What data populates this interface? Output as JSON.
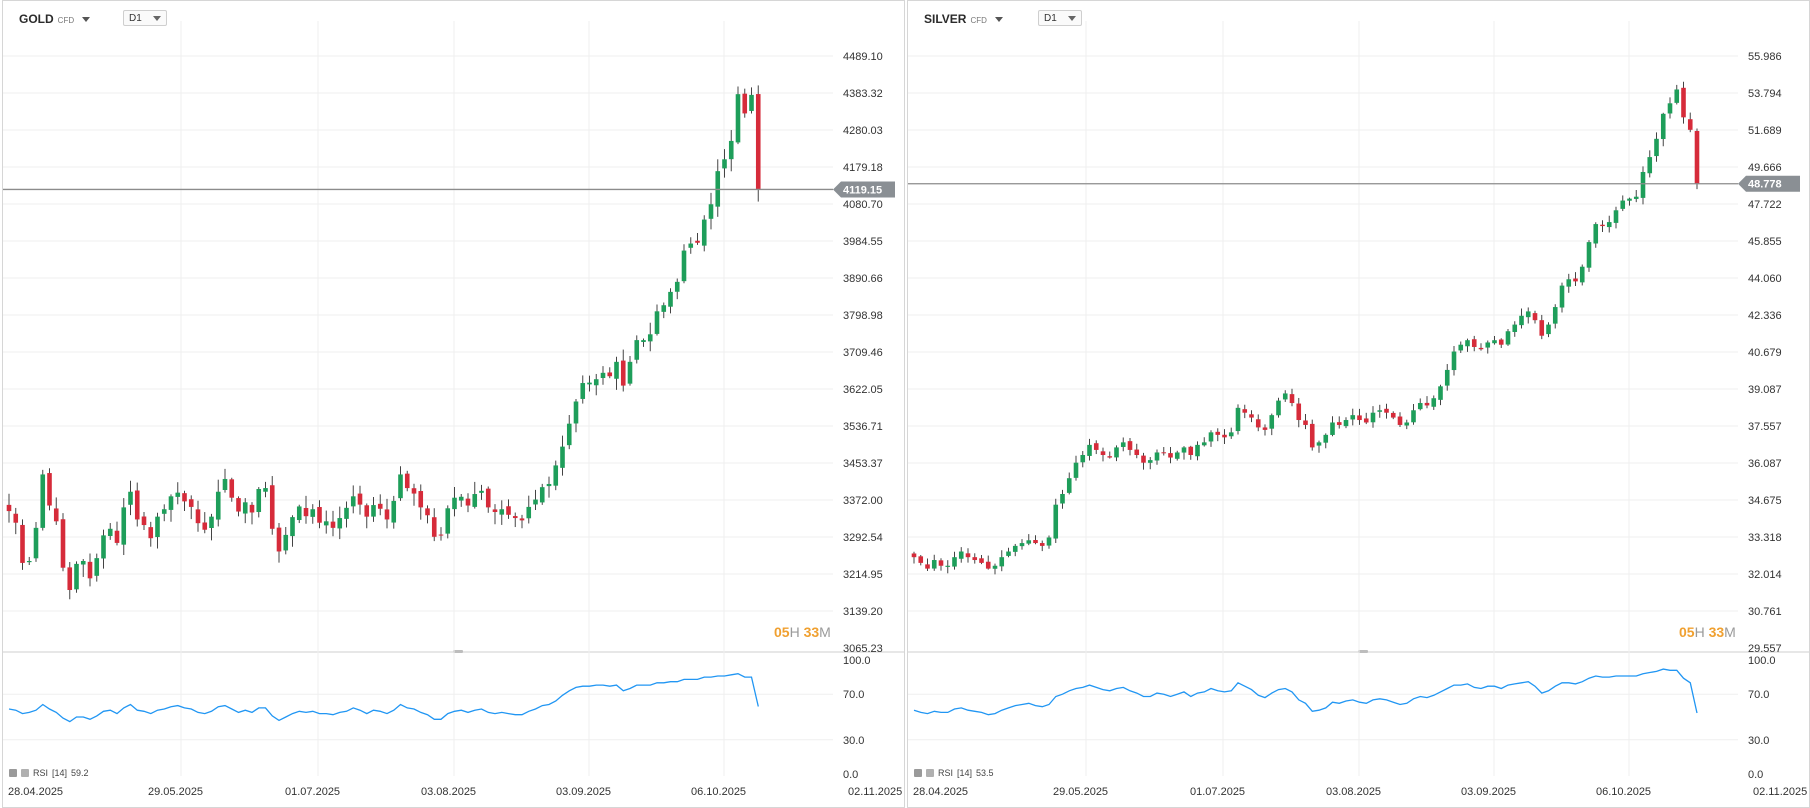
{
  "charts": [
    {
      "symbol": "GOLD",
      "badge": "CFD",
      "timeframe": "D1",
      "current_price": "4119.15",
      "price_axis": [
        "4489.10",
        "4383.32",
        "4280.03",
        "4179.18",
        "4080.70",
        "3984.55",
        "3890.66",
        "3798.98",
        "3709.46",
        "3622.05",
        "3536.71",
        "3453.37",
        "3372.00",
        "3292.54",
        "3214.95",
        "3139.20",
        "3065.23"
      ],
      "countdown": {
        "hours": "05",
        "h_unit": "H",
        "minutes": "33",
        "m_unit": "M"
      },
      "rsi": {
        "label": "RSI",
        "period": "[14]",
        "value": "59.2",
        "axis": [
          "100.0",
          "70.0",
          "30.0",
          "0.0"
        ]
      },
      "dates": [
        "28.04.2025",
        "29.05.2025",
        "01.07.2025",
        "03.08.2025",
        "03.09.2025",
        "06.10.2025",
        "02.11.2025"
      ]
    },
    {
      "symbol": "SILVER",
      "badge": "CFD",
      "timeframe": "D1",
      "current_price": "48.778",
      "price_axis": [
        "55.986",
        "53.794",
        "51.689",
        "49.666",
        "47.722",
        "45.855",
        "44.060",
        "42.336",
        "40.679",
        "39.087",
        "37.557",
        "36.087",
        "34.675",
        "33.318",
        "32.014",
        "30.761",
        "29.557"
      ],
      "countdown": {
        "hours": "05",
        "h_unit": "H",
        "minutes": "33",
        "m_unit": "M"
      },
      "rsi": {
        "label": "RSI",
        "period": "[14]",
        "value": "53.5",
        "axis": [
          "100.0",
          "70.0",
          "30.0",
          "0.0"
        ]
      },
      "dates": [
        "28.04.2025",
        "29.05.2025",
        "01.07.2025",
        "03.08.2025",
        "03.09.2025",
        "06.10.2025",
        "02.11.2025"
      ]
    }
  ],
  "colors": {
    "up": "#1e9e5a",
    "down": "#d62b3a",
    "rsi": "#2196f3",
    "price_line": "#8c8c8c",
    "grid": "#efefef"
  },
  "chart_data": [
    {
      "type": "candlestick",
      "title": "GOLD",
      "log_scale": true,
      "ylim": [
        3065.23,
        4489.1
      ],
      "series": [
        {
          "name": "GOLD",
          "values": [
            3348,
            3323,
            3238,
            3242,
            3312,
            3428,
            3360,
            3326,
            3228,
            3182,
            3236,
            3242,
            3206,
            3248,
            3296,
            3310,
            3280,
            3356,
            3390,
            3330,
            3318,
            3290,
            3336,
            3352,
            3380,
            3388,
            3369,
            3357,
            3322,
            3308,
            3336,
            3390,
            3418,
            3377,
            3347,
            3367,
            3345,
            3396,
            3398,
            3310,
            3262,
            3297,
            3335,
            3358,
            3337,
            3352,
            3323,
            3326,
            3312,
            3333,
            3355,
            3380,
            3362,
            3336,
            3361,
            3353,
            3330,
            3370,
            3428,
            3398,
            3386,
            3356,
            3339,
            3293,
            3296,
            3354,
            3377,
            3379,
            3360,
            3385,
            3392,
            3356,
            3346,
            3352,
            3340,
            3333,
            3328,
            3357,
            3373,
            3400,
            3407,
            3448,
            3490,
            3542,
            3593,
            3636,
            3637,
            3645,
            3660,
            3652,
            3686,
            3630,
            3686,
            3738,
            3738,
            3752,
            3808,
            3823,
            3856,
            3881,
            3960,
            3978,
            3980,
            4040,
            4080,
            4168,
            4200,
            4250,
            4380,
            4326,
            4378,
            4119
          ]
        }
      ],
      "rsi": [
        57,
        56,
        53,
        54,
        56,
        61,
        57,
        54,
        49,
        46,
        50,
        50,
        48,
        51,
        55,
        56,
        53,
        58,
        61,
        56,
        55,
        53,
        56,
        57,
        59,
        60,
        58,
        57,
        54,
        53,
        55,
        59,
        60,
        57,
        54,
        56,
        54,
        58,
        58,
        51,
        47,
        50,
        53,
        55,
        54,
        55,
        53,
        53,
        52,
        54,
        55,
        58,
        56,
        53,
        56,
        55,
        53,
        56,
        61,
        58,
        57,
        54,
        52,
        48,
        48,
        53,
        55,
        56,
        54,
        56,
        57,
        54,
        53,
        54,
        53,
        52,
        52,
        55,
        57,
        60,
        61,
        64,
        69,
        73,
        76,
        77,
        77,
        78,
        78,
        77,
        78,
        73,
        75,
        78,
        78,
        78,
        80,
        80,
        81,
        81,
        83,
        83,
        83,
        85,
        85,
        86,
        86,
        87,
        88,
        85,
        85,
        59.2
      ]
    },
    {
      "type": "candlestick",
      "title": "SILVER",
      "log_scale": true,
      "ylim": [
        29.557,
        55.986
      ],
      "series": [
        {
          "name": "SILVER",
          "values": [
            32.6,
            32.4,
            32.2,
            32.5,
            32.3,
            32.3,
            32.6,
            32.8,
            32.6,
            32.5,
            32.4,
            32.2,
            32.3,
            32.6,
            32.8,
            33.0,
            33.1,
            33.2,
            33.1,
            33.0,
            33.3,
            34.5,
            34.9,
            35.5,
            36.1,
            36.4,
            36.8,
            36.6,
            36.4,
            36.3,
            36.7,
            36.9,
            36.6,
            36.4,
            36.1,
            36.2,
            36.5,
            36.5,
            36.3,
            36.5,
            36.7,
            36.4,
            36.8,
            36.9,
            37.3,
            37.2,
            37.1,
            37.3,
            38.3,
            38.1,
            37.9,
            37.5,
            37.4,
            38.0,
            38.6,
            38.9,
            38.5,
            37.8,
            37.6,
            36.7,
            36.9,
            37.2,
            37.7,
            37.6,
            37.8,
            38.0,
            37.8,
            37.7,
            38.1,
            38.2,
            38.1,
            37.9,
            37.6,
            37.7,
            38.2,
            38.5,
            38.4,
            38.7,
            39.2,
            39.9,
            40.7,
            41.0,
            41.2,
            40.9,
            40.8,
            41.1,
            41.2,
            41.0,
            41.6,
            41.9,
            42.3,
            42.5,
            42.1,
            41.4,
            41.9,
            42.7,
            43.7,
            44.0,
            43.9,
            44.6,
            45.8,
            46.7,
            46.6,
            46.8,
            47.4,
            47.9,
            48.0,
            48.1,
            49.4,
            50.2,
            51.2,
            52.6,
            53.2,
            54.0,
            52.4,
            51.7,
            48.778
          ]
        }
      ],
      "rsi": [
        56,
        54,
        53,
        55,
        54,
        54,
        57,
        58,
        56,
        55,
        54,
        52,
        53,
        56,
        58,
        60,
        61,
        62,
        60,
        59,
        61,
        68,
        70,
        73,
        75,
        76,
        78,
        76,
        74,
        73,
        75,
        76,
        73,
        71,
        68,
        68,
        71,
        70,
        68,
        70,
        72,
        68,
        71,
        72,
        75,
        73,
        72,
        73,
        80,
        77,
        74,
        69,
        67,
        71,
        74,
        75,
        72,
        65,
        62,
        55,
        56,
        58,
        63,
        62,
        64,
        65,
        63,
        62,
        65,
        66,
        65,
        63,
        61,
        62,
        66,
        68,
        67,
        69,
        72,
        75,
        78,
        78,
        79,
        76,
        75,
        77,
        77,
        75,
        78,
        79,
        80,
        81,
        77,
        71,
        73,
        77,
        80,
        80,
        79,
        81,
        84,
        86,
        85,
        85,
        86,
        86,
        86,
        86,
        88,
        89,
        90,
        92,
        91,
        91,
        84,
        80,
        53.5
      ]
    }
  ]
}
